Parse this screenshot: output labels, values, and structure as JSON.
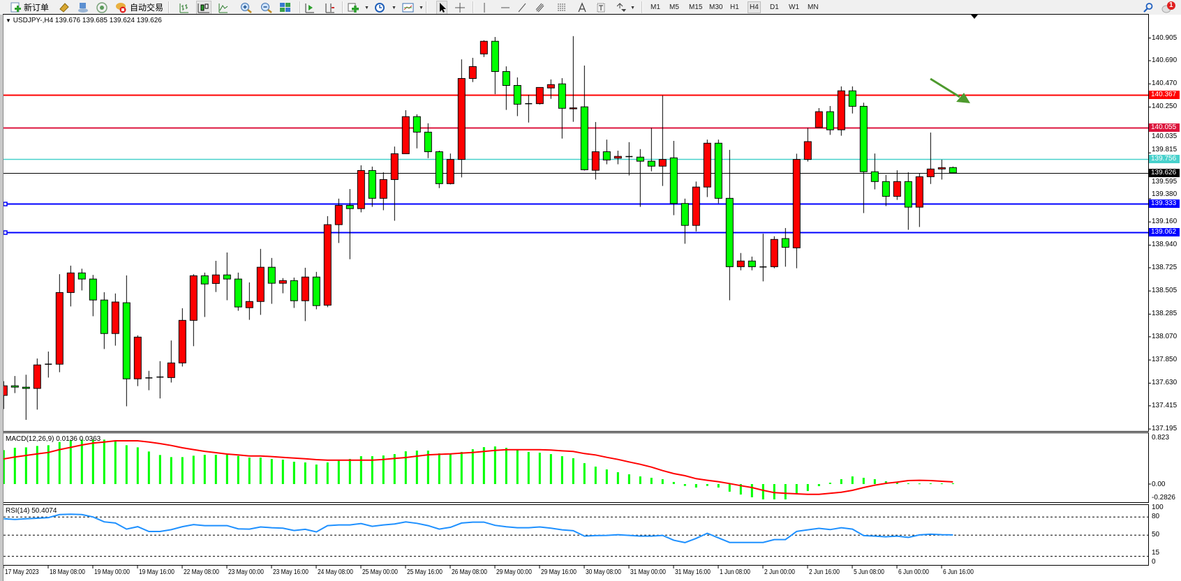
{
  "toolbar": {
    "new_order": "新订单",
    "auto_trade": "自动交易",
    "timeframes": [
      "M1",
      "M5",
      "M15",
      "M30",
      "H1",
      "H4",
      "D1",
      "W1",
      "MN"
    ],
    "active_timeframe": "H4",
    "notification_count": "1",
    "icons": [
      "new-order-icon",
      "metaeditor-icon",
      "market-watch-icon",
      "signals-icon",
      "auto-trading-icon",
      "bar-chart-icon",
      "candlestick-icon",
      "line-chart-icon",
      "zoom-in-icon",
      "zoom-out-icon",
      "tile-windows-icon",
      "auto-scroll-icon",
      "chart-shift-icon",
      "indicators-icon",
      "periods-icon",
      "templates-icon",
      "cursor-icon",
      "crosshair-icon",
      "vertical-line-icon",
      "horizontal-line-icon",
      "trendline-icon",
      "channel-icon",
      "fibonacci-icon",
      "text-icon",
      "text-label-icon",
      "arrows-icon",
      "search-icon",
      "notification-icon"
    ]
  },
  "chart": {
    "symbol": "USDJPY-,H4",
    "ohlc": "139.676 139.685 139.624 139.626",
    "price_ticks": [
      "140.905",
      "140.690",
      "140.470",
      "140.250",
      "140.035",
      "139.815",
      "139.595",
      "139.380",
      "139.160",
      "138.940",
      "138.725",
      "138.505",
      "138.285",
      "138.070",
      "137.850",
      "137.630",
      "137.415",
      "137.195"
    ],
    "horizontal_lines": [
      {
        "price": "140.367",
        "color": "#ff0000"
      },
      {
        "price": "140.055",
        "color": "#dc143c"
      },
      {
        "price": "139.756",
        "color": "#48d1cc"
      },
      {
        "price": "139.626",
        "color": "#000000"
      },
      {
        "price": "139.333",
        "color": "#0000ff"
      },
      {
        "price": "139.062",
        "color": "#0000ff"
      }
    ],
    "time_labels": [
      "17 May 2023",
      "18 May 08:00",
      "19 May 00:00",
      "19 May 16:00",
      "22 May 08:00",
      "23 May 00:00",
      "23 May 16:00",
      "24 May 08:00",
      "25 May 00:00",
      "25 May 16:00",
      "26 May 08:00",
      "29 May 00:00",
      "29 May 16:00",
      "30 May 08:00",
      "31 May 00:00",
      "31 May 16:00",
      "1 Jun 08:00",
      "2 Jun 00:00",
      "2 Jun 16:00",
      "5 Jun 08:00",
      "6 Jun 00:00",
      "6 Jun 16:00"
    ],
    "arrow_color": "#4e9a2e"
  },
  "chart_data": {
    "type": "candlestick",
    "bull_color": "#ff0000",
    "bear_color": "#00ff00",
    "ylim": [
      137.181,
      141.127
    ],
    "ohlc": [
      [
        137.514,
        137.649,
        137.384,
        137.605
      ],
      [
        137.605,
        137.698,
        137.536,
        137.592
      ],
      [
        137.592,
        137.71,
        137.282,
        137.58
      ],
      [
        137.58,
        137.864,
        137.379,
        137.803
      ],
      [
        137.81,
        137.93,
        137.683,
        137.81
      ],
      [
        137.81,
        138.664,
        137.734,
        138.49
      ],
      [
        138.49,
        138.745,
        138.358,
        138.676
      ],
      [
        138.676,
        138.716,
        138.51,
        138.618
      ],
      [
        138.618,
        138.657,
        138.265,
        138.419
      ],
      [
        138.419,
        138.493,
        137.954,
        138.101
      ],
      [
        138.101,
        138.481,
        137.986,
        138.4
      ],
      [
        138.393,
        138.652,
        137.411,
        137.671
      ],
      [
        137.671,
        138.084,
        137.602,
        138.067
      ],
      [
        137.68,
        137.747,
        137.563,
        137.68
      ],
      [
        137.688,
        137.839,
        137.485,
        137.688
      ],
      [
        137.683,
        138.035,
        137.636,
        137.822
      ],
      [
        137.822,
        138.341,
        137.788,
        138.226
      ],
      [
        138.226,
        138.664,
        137.981,
        138.649
      ],
      [
        138.649,
        138.679,
        138.258,
        138.571
      ],
      [
        138.576,
        138.791,
        138.495,
        138.657
      ],
      [
        138.657,
        138.87,
        138.417,
        138.618
      ],
      [
        138.618,
        138.679,
        138.317,
        138.353
      ],
      [
        138.346,
        138.586,
        138.231,
        138.405
      ],
      [
        138.405,
        138.904,
        138.278,
        138.73
      ],
      [
        138.73,
        138.818,
        138.383,
        138.578
      ],
      [
        138.578,
        138.627,
        138.483,
        138.603
      ],
      [
        138.603,
        138.632,
        138.344,
        138.412
      ],
      [
        138.412,
        138.725,
        138.219,
        138.637
      ],
      [
        138.637,
        138.686,
        138.331,
        138.366
      ],
      [
        138.37,
        139.215,
        138.351,
        139.134
      ],
      [
        139.134,
        139.381,
        138.96,
        139.317
      ],
      [
        139.317,
        139.472,
        138.806,
        139.286
      ],
      [
        139.286,
        139.697,
        139.251,
        139.648
      ],
      [
        139.648,
        139.685,
        139.303,
        139.384
      ],
      [
        139.384,
        139.631,
        139.271,
        139.562
      ],
      [
        139.562,
        139.875,
        139.171,
        139.807
      ],
      [
        139.807,
        140.22,
        139.807,
        140.159
      ],
      [
        140.159,
        140.181,
        139.858,
        140.012
      ],
      [
        140.012,
        140.096,
        139.765,
        139.826
      ],
      [
        139.826,
        139.836,
        139.481,
        139.523
      ],
      [
        139.523,
        139.809,
        139.516,
        139.753
      ],
      [
        139.753,
        140.702,
        139.582,
        140.521
      ],
      [
        140.521,
        140.717,
        140.487,
        140.634
      ],
      [
        140.754,
        140.884,
        140.725,
        140.874
      ],
      [
        140.874,
        140.915,
        140.372,
        140.587
      ],
      [
        140.587,
        140.636,
        140.223,
        140.455
      ],
      [
        140.455,
        140.531,
        140.164,
        140.277
      ],
      [
        140.282,
        140.365,
        140.103,
        140.282
      ],
      [
        140.282,
        140.436,
        140.274,
        140.436
      ],
      [
        140.431,
        140.512,
        140.328,
        140.463
      ],
      [
        140.47,
        140.524,
        139.951,
        140.238
      ],
      [
        140.233,
        140.923,
        140.11,
        140.242
      ],
      [
        140.252,
        140.644,
        139.648,
        139.655
      ],
      [
        139.65,
        140.108,
        139.562,
        139.826
      ],
      [
        139.826,
        139.941,
        139.707,
        139.748
      ],
      [
        139.765,
        139.836,
        139.707,
        139.782
      ],
      [
        139.78,
        139.917,
        139.601,
        139.78
      ],
      [
        139.775,
        139.851,
        139.303,
        139.736
      ],
      [
        139.736,
        140.052,
        139.64,
        139.689
      ],
      [
        139.689,
        140.36,
        139.501,
        139.753
      ],
      [
        139.768,
        139.929,
        139.224,
        139.335
      ],
      [
        139.335,
        139.381,
        138.953,
        139.127
      ],
      [
        139.127,
        139.543,
        139.07,
        139.491
      ],
      [
        139.491,
        139.941,
        139.396,
        139.907
      ],
      [
        139.907,
        139.941,
        139.337,
        139.384
      ],
      [
        139.384,
        139.844,
        138.417,
        138.735
      ],
      [
        138.735,
        138.865,
        138.701,
        138.789
      ],
      [
        138.789,
        138.831,
        138.701,
        138.735
      ],
      [
        138.733,
        139.048,
        138.596,
        138.733
      ],
      [
        138.735,
        139.024,
        138.72,
        138.994
      ],
      [
        139.002,
        139.102,
        138.735,
        138.919
      ],
      [
        138.914,
        139.807,
        138.72,
        139.753
      ],
      [
        139.753,
        140.052,
        139.733,
        139.922
      ],
      [
        140.056,
        140.24,
        140.056,
        140.206
      ],
      [
        140.206,
        140.26,
        139.986,
        140.034
      ],
      [
        140.034,
        140.446,
        139.978,
        140.404
      ],
      [
        140.404,
        140.446,
        140.189,
        140.257
      ],
      [
        140.257,
        140.291,
        139.244,
        139.636
      ],
      [
        139.636,
        139.809,
        139.469,
        139.543
      ],
      [
        139.543,
        139.606,
        139.31,
        139.403
      ],
      [
        139.403,
        139.65,
        139.369,
        139.543
      ],
      [
        139.543,
        139.631,
        139.085,
        139.3
      ],
      [
        139.3,
        139.618,
        139.112,
        139.589
      ],
      [
        139.589,
        140.008,
        139.52,
        139.662
      ],
      [
        139.662,
        139.751,
        139.562,
        139.675
      ],
      [
        139.676,
        139.685,
        139.624,
        139.626
      ]
    ],
    "macd": {
      "label": "MACD(12,26,9) 0.0136 0.0363",
      "axis_labels": [
        "0.823",
        "0.00",
        "-0.2826"
      ],
      "ylim": [
        -0.2826,
        0.823
      ],
      "histogram_color": "#00ff00",
      "signal_color": "#ff0000",
      "histogram": [
        0.564,
        0.603,
        0.61,
        0.633,
        0.645,
        0.699,
        0.726,
        0.738,
        0.738,
        0.738,
        0.726,
        0.645,
        0.61,
        0.541,
        0.483,
        0.448,
        0.448,
        0.471,
        0.486,
        0.486,
        0.486,
        0.467,
        0.44,
        0.44,
        0.417,
        0.405,
        0.371,
        0.359,
        0.324,
        0.359,
        0.386,
        0.417,
        0.463,
        0.463,
        0.475,
        0.498,
        0.544,
        0.556,
        0.556,
        0.51,
        0.498,
        0.533,
        0.579,
        0.614,
        0.625,
        0.602,
        0.568,
        0.533,
        0.521,
        0.498,
        0.463,
        0.429,
        0.347,
        0.29,
        0.243,
        0.197,
        0.162,
        0.127,
        0.104,
        0.081,
        0.035,
        -0.031,
        -0.058,
        -0.031,
        -0.058,
        -0.127,
        -0.174,
        -0.22,
        -0.255,
        -0.255,
        -0.255,
        -0.162,
        -0.116,
        -0.035,
        0.023,
        0.081,
        0.127,
        0.104,
        0.081,
        0.046,
        0.023,
        0.012,
        0.01,
        0.012,
        0.011,
        0.0136
      ],
      "signal": [
        0.417,
        0.448,
        0.475,
        0.502,
        0.525,
        0.572,
        0.61,
        0.649,
        0.68,
        0.699,
        0.718,
        0.718,
        0.718,
        0.699,
        0.672,
        0.641,
        0.603,
        0.572,
        0.544,
        0.521,
        0.498,
        0.483,
        0.467,
        0.467,
        0.456,
        0.444,
        0.432,
        0.421,
        0.405,
        0.398,
        0.398,
        0.398,
        0.398,
        0.398,
        0.409,
        0.425,
        0.44,
        0.463,
        0.486,
        0.494,
        0.502,
        0.514,
        0.525,
        0.541,
        0.56,
        0.571,
        0.571,
        0.571,
        0.571,
        0.564,
        0.552,
        0.541,
        0.506,
        0.483,
        0.444,
        0.409,
        0.367,
        0.328,
        0.282,
        0.224,
        0.174,
        0.139,
        0.089,
        0.062,
        0.039,
        0.008,
        -0.027,
        -0.058,
        -0.104,
        -0.143,
        -0.154,
        -0.162,
        -0.17,
        -0.17,
        -0.154,
        -0.135,
        -0.104,
        -0.058,
        -0.019,
        0.012,
        0.031,
        0.058,
        0.062,
        0.058,
        0.046,
        0.0363
      ]
    },
    "rsi": {
      "label": "RSI(14) 50.4074",
      "axis_labels": [
        "100",
        "80",
        "50",
        "15",
        "0"
      ],
      "levels": [
        80,
        50,
        15
      ],
      "ylim": [
        0,
        100
      ],
      "color": "#1e90ff",
      "values": [
        77,
        76,
        77,
        78,
        79,
        84,
        84.7,
        84,
        80,
        72,
        70,
        60,
        64,
        56,
        56,
        59,
        64,
        67.5,
        65.8,
        65.8,
        65.8,
        60.4,
        60,
        63.5,
        62.3,
        61.5,
        57.7,
        59.6,
        55.4,
        65.8,
        66.9,
        66.9,
        69.2,
        64.6,
        66.9,
        68.5,
        71.9,
        69.6,
        65.8,
        60,
        63,
        70,
        71.5,
        71.5,
        66.2,
        63.8,
        62.3,
        62.3,
        63.5,
        61.5,
        58.8,
        57.3,
        48.5,
        49.2,
        49.6,
        50.8,
        49.6,
        48.5,
        48.5,
        49.6,
        41.5,
        37.7,
        44.6,
        53,
        45.4,
        38,
        38,
        38,
        38,
        42.7,
        42.7,
        56.2,
        58.8,
        61.2,
        59.2,
        62.3,
        60,
        49.2,
        48.5,
        47.3,
        48.5,
        46.2,
        50.4,
        51.5,
        50.8,
        50.4074
      ]
    }
  }
}
